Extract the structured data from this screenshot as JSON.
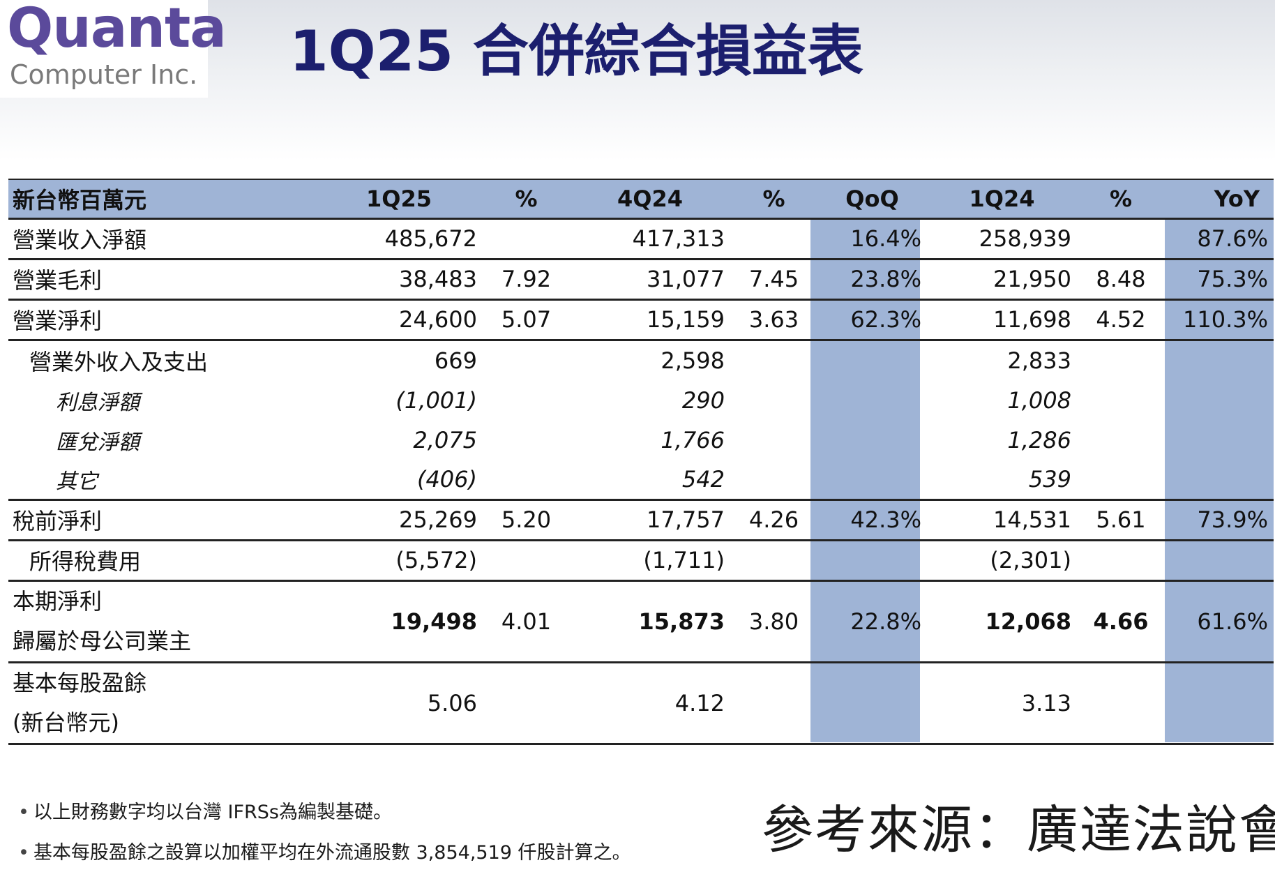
{
  "logo": {
    "main": "Quanta",
    "sub": "Computer Inc."
  },
  "title": "1Q25 合併綜合損益表",
  "table": {
    "headers": [
      "新台幣百萬元",
      "1Q25",
      "%",
      "4Q24",
      "%",
      "QoQ",
      "1Q24",
      "%",
      "YoY"
    ],
    "rows": [
      {
        "label": "營業收入淨額",
        "q125": "485,672",
        "p1": "",
        "q424": "417,313",
        "p2": "",
        "qoq": "16.4%",
        "q124": "258,939",
        "p3": "",
        "yoy": "87.6%"
      },
      {
        "label": "營業毛利",
        "q125": "38,483",
        "p1": "7.92",
        "q424": "31,077",
        "p2": "7.45",
        "qoq": "23.8%",
        "q124": "21,950",
        "p3": "8.48",
        "yoy": "75.3%"
      },
      {
        "label": "營業淨利",
        "q125": "24,600",
        "p1": "5.07",
        "q424": "15,159",
        "p2": "3.63",
        "qoq": "62.3%",
        "q124": "11,698",
        "p3": "4.52",
        "yoy": "110.3%"
      },
      {
        "label": "營業外收入及支出",
        "q125": "669",
        "p1": "",
        "q424": "2,598",
        "p2": "",
        "qoq": "",
        "q124": "2,833",
        "p3": "",
        "yoy": ""
      },
      {
        "label": "利息淨額",
        "q125": "(1,001)",
        "p1": "",
        "q424": "290",
        "p2": "",
        "qoq": "",
        "q124": "1,008",
        "p3": "",
        "yoy": ""
      },
      {
        "label": "匯兌淨額",
        "q125": "2,075",
        "p1": "",
        "q424": "1,766",
        "p2": "",
        "qoq": "",
        "q124": "1,286",
        "p3": "",
        "yoy": ""
      },
      {
        "label": "其它",
        "q125": "(406)",
        "p1": "",
        "q424": "542",
        "p2": "",
        "qoq": "",
        "q124": "539",
        "p3": "",
        "yoy": ""
      },
      {
        "label": "稅前淨利",
        "q125": "25,269",
        "p1": "5.20",
        "q424": "17,757",
        "p2": "4.26",
        "qoq": "42.3%",
        "q124": "14,531",
        "p3": "5.61",
        "yoy": "73.9%"
      },
      {
        "label": "所得稅費用",
        "q125": "(5,572)",
        "p1": "",
        "q424": "(1,711)",
        "p2": "",
        "qoq": "",
        "q124": "(2,301)",
        "p3": "",
        "yoy": ""
      },
      {
        "label_line1": "本期淨利",
        "label_line2": "歸屬於母公司業主",
        "q125": "19,498",
        "p1": "4.01",
        "q424": "15,873",
        "p2": "3.80",
        "qoq": "22.8%",
        "q124": "12,068",
        "p3": "4.66",
        "yoy": "61.6%"
      },
      {
        "label_line1": "基本每股盈餘",
        "label_line2": "(新台幣元)",
        "q125": "5.06",
        "p1": "",
        "q424": "4.12",
        "p2": "",
        "qoq": "",
        "q124": "3.13",
        "p3": "",
        "yoy": ""
      }
    ]
  },
  "notes": [
    "以上財務數字均以台灣 IFRSs為編製基礎。",
    "基本每股盈餘之設算以加權平均在外流通股數 3,854,519 仟股計算之。"
  ],
  "source": "參考來源：廣達法說會",
  "colors": {
    "title": "#1c1f6e",
    "logo": "#5b4a9b",
    "highlight": "#9fb4d6"
  }
}
